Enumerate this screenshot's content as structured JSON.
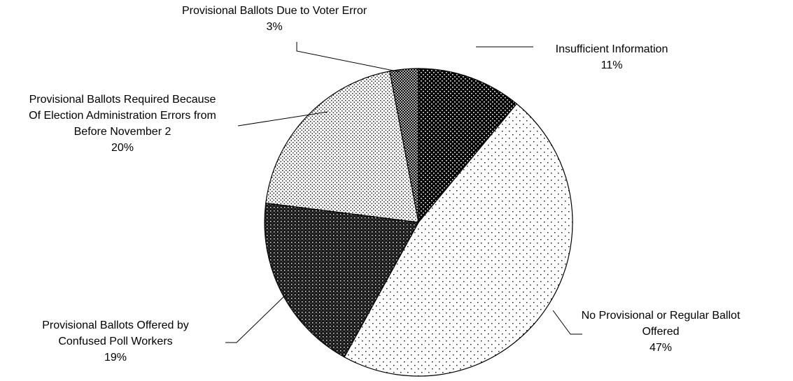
{
  "chart_data": {
    "type": "pie",
    "title": "",
    "slices": [
      {
        "label_lines": [
          "Insufficient Information"
        ],
        "pct_label": "11%",
        "value": 11,
        "pattern": "dense-dots"
      },
      {
        "label_lines": [
          "No Provisional or Regular Ballot",
          "Offered"
        ],
        "pct_label": "47%",
        "value": 47,
        "pattern": "sparse-dots"
      },
      {
        "label_lines": [
          "Provisional Ballots Offered by",
          "Confused Poll Workers"
        ],
        "pct_label": "19%",
        "value": 19,
        "pattern": "dark-dots"
      },
      {
        "label_lines": [
          "Provisional Ballots Required Because",
          "Of Election Administration Errors from",
          "Before November 2"
        ],
        "pct_label": "20%",
        "value": 20,
        "pattern": "medium-dots"
      },
      {
        "label_lines": [
          "Provisional Ballots Due to Voter Error"
        ],
        "pct_label": "3%",
        "value": 3,
        "pattern": "crosshatch"
      }
    ],
    "start_angle": "12 o'clock",
    "direction": "clockwise",
    "legend": "none",
    "colors": {
      "background": "#ffffff",
      "ink": "#000000"
    }
  }
}
